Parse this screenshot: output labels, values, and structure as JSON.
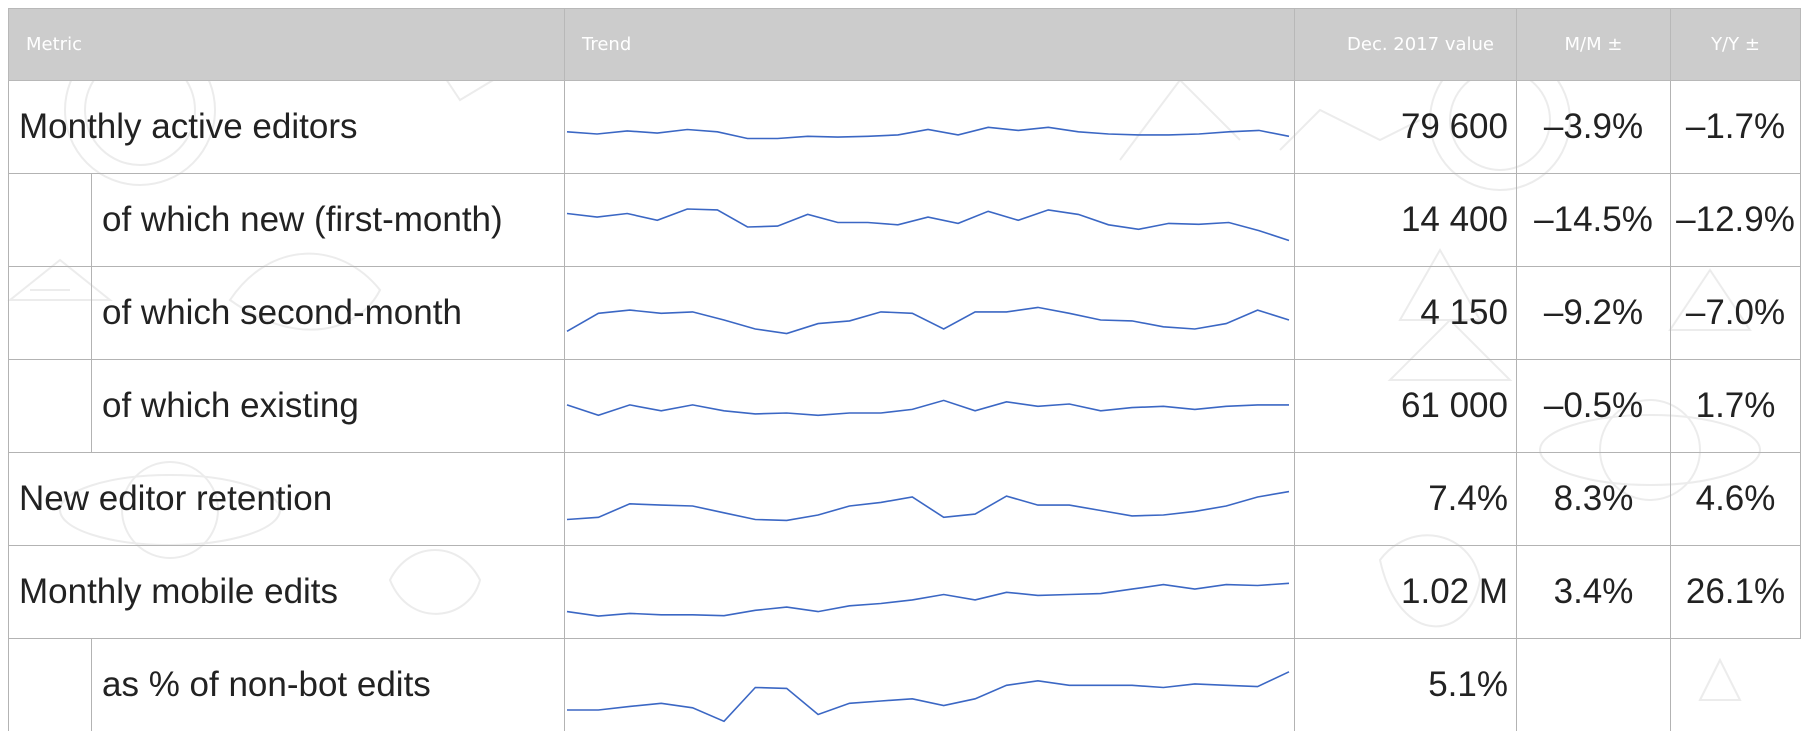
{
  "table": {
    "headers": {
      "metric": "Metric",
      "trend": "Trend",
      "value": "Dec. 2017 value",
      "mm": "M/M ±",
      "yy": "Y/Y ±"
    },
    "rows": [
      {
        "label": "Monthly active editors",
        "indent": false,
        "value": "79 600",
        "mm": "–3.9%",
        "yy": "–1.7%",
        "trend": [
          0.45,
          0.4,
          0.47,
          0.42,
          0.5,
          0.45,
          0.3,
          0.3,
          0.35,
          0.33,
          0.35,
          0.38,
          0.5,
          0.38,
          0.55,
          0.48,
          0.55,
          0.45,
          0.4,
          0.38,
          0.38,
          0.4,
          0.45,
          0.48,
          0.35
        ]
      },
      {
        "label": "of which new (first-month)",
        "indent": true,
        "value": "14 400",
        "mm": "–14.5%",
        "yy": "–12.9%",
        "trend": [
          0.7,
          0.62,
          0.7,
          0.55,
          0.8,
          0.78,
          0.4,
          0.42,
          0.68,
          0.5,
          0.5,
          0.45,
          0.62,
          0.48,
          0.75,
          0.55,
          0.78,
          0.68,
          0.45,
          0.35,
          0.48,
          0.46,
          0.5,
          0.32,
          0.1
        ]
      },
      {
        "label": "of which second-month",
        "indent": true,
        "value": "4 150",
        "mm": "–9.2%",
        "yy": "–7.0%",
        "trend": [
          0.15,
          0.55,
          0.62,
          0.55,
          0.58,
          0.4,
          0.2,
          0.1,
          0.32,
          0.38,
          0.58,
          0.55,
          0.2,
          0.58,
          0.58,
          0.68,
          0.55,
          0.4,
          0.38,
          0.25,
          0.2,
          0.32,
          0.62,
          0.4
        ]
      },
      {
        "label": "of which existing",
        "indent": true,
        "value": "61 000",
        "mm": "–0.5%",
        "yy": "1.7%",
        "trend": [
          0.58,
          0.35,
          0.58,
          0.45,
          0.58,
          0.45,
          0.38,
          0.4,
          0.35,
          0.4,
          0.4,
          0.48,
          0.68,
          0.45,
          0.65,
          0.55,
          0.6,
          0.45,
          0.52,
          0.55,
          0.48,
          0.55,
          0.58,
          0.58
        ]
      },
      {
        "label": "New editor retention",
        "indent": false,
        "value": "7.4%",
        "mm": "8.3%",
        "yy": "4.6%",
        "trend": [
          0.1,
          0.15,
          0.45,
          0.42,
          0.4,
          0.25,
          0.1,
          0.08,
          0.2,
          0.4,
          0.48,
          0.6,
          0.15,
          0.22,
          0.62,
          0.42,
          0.42,
          0.3,
          0.18,
          0.2,
          0.28,
          0.4,
          0.6,
          0.72
        ]
      },
      {
        "label": "Monthly mobile edits",
        "indent": false,
        "value": "1.02 M",
        "mm": "3.4%",
        "yy": "26.1%",
        "trend": [
          0.12,
          0.02,
          0.08,
          0.05,
          0.05,
          0.03,
          0.15,
          0.22,
          0.12,
          0.25,
          0.3,
          0.38,
          0.5,
          0.38,
          0.55,
          0.48,
          0.5,
          0.52,
          0.62,
          0.72,
          0.62,
          0.72,
          0.7,
          0.75
        ]
      },
      {
        "label": "as % of non-bot edits",
        "indent": true,
        "value": "5.1%",
        "mm": "",
        "yy": "",
        "trend": [
          0.0,
          0.0,
          0.08,
          0.15,
          0.05,
          -0.25,
          0.5,
          0.48,
          -0.1,
          0.15,
          0.2,
          0.25,
          0.1,
          0.25,
          0.55,
          0.65,
          0.55,
          0.55,
          0.55,
          0.5,
          0.58,
          0.55,
          0.52,
          0.85
        ]
      }
    ]
  }
}
